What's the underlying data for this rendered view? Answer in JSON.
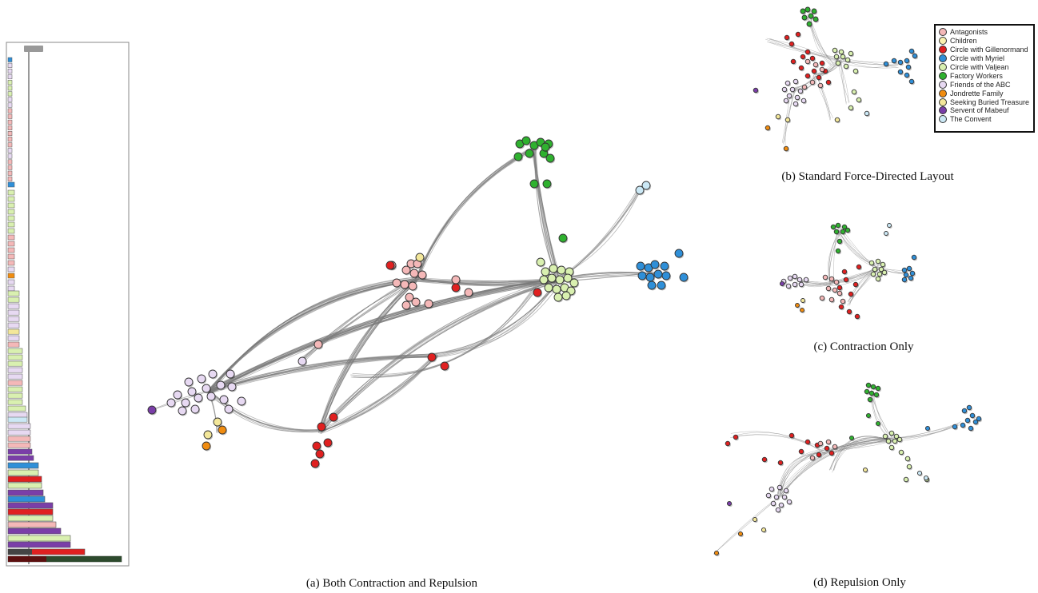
{
  "captions": {
    "a": "(a) Both Contraction and Repulsion",
    "b": "(b) Standard Force-Directed Layout",
    "c": "(c) Contraction Only",
    "d": "(d) Repulsion Only"
  },
  "legend": {
    "items": [
      {
        "label": "Antagonists",
        "color": "#f4b8b8"
      },
      {
        "label": "Children",
        "color": "#fbf3b0"
      },
      {
        "label": "Circle with Gillenormand",
        "color": "#e02020"
      },
      {
        "label": "Circle with Myriel",
        "color": "#2f8fd8"
      },
      {
        "label": "Circle with Valjean",
        "color": "#d9f0b0"
      },
      {
        "label": "Factory Workers",
        "color": "#2fb12f"
      },
      {
        "label": "Friends of the ABC",
        "color": "#e7d9f2"
      },
      {
        "label": "Jondrette Family",
        "color": "#f08c10"
      },
      {
        "label": "Seeking Buried Treasure",
        "color": "#f3e79a"
      },
      {
        "label": "Servent of Mabeuf",
        "color": "#7a3ea8"
      },
      {
        "label": "The Convent",
        "color": "#cbe8f5"
      }
    ]
  },
  "colors": {
    "edge": "#7a7a7a",
    "node_stroke": "#333333",
    "hier_outline": "#888888"
  }
}
